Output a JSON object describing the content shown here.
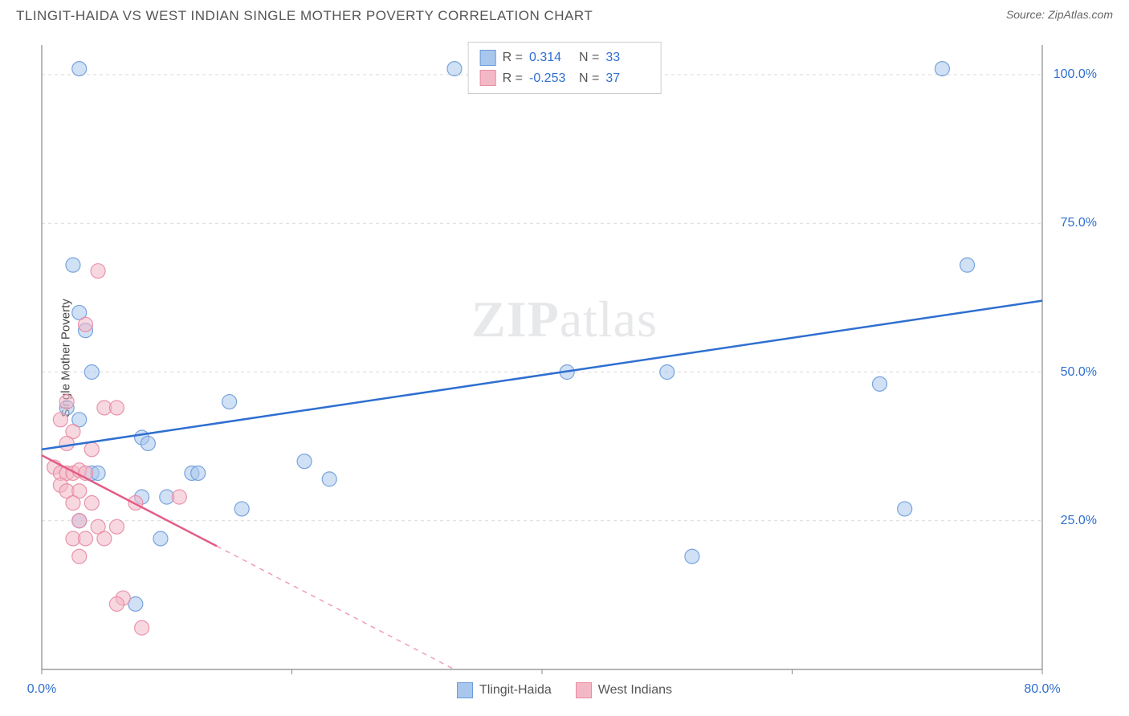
{
  "title": "TLINGIT-HAIDA VS WEST INDIAN SINGLE MOTHER POVERTY CORRELATION CHART",
  "source_label": "Source: ZipAtlas.com",
  "y_axis_label": "Single Mother Poverty",
  "watermark": "ZIPatlas",
  "chart": {
    "type": "scatter-with-trend",
    "xlim": [
      0,
      80
    ],
    "ylim": [
      0,
      105
    ],
    "x_ticks": [
      0,
      20,
      40,
      60,
      80
    ],
    "x_tick_labels": [
      "0.0%",
      "",
      "",
      "",
      "80.0%"
    ],
    "y_ticks": [
      25,
      50,
      75,
      100
    ],
    "y_tick_labels": [
      "25.0%",
      "50.0%",
      "75.0%",
      "100.0%"
    ],
    "grid_color": "#d8d8d8",
    "axis_color": "#888888",
    "background_color": "#ffffff",
    "marker_radius": 9,
    "marker_opacity": 0.55,
    "series": [
      {
        "name": "Tlingit-Haida",
        "fill": "#a9c6ec",
        "stroke": "#6b9bd8",
        "trend_color": "#2f6fd0",
        "trend_width": 2.5,
        "trend": {
          "x1": 0,
          "y1": 37,
          "x2": 80,
          "y2": 62
        },
        "trend_dash_after_x": null,
        "points": [
          [
            3,
            101
          ],
          [
            33,
            101
          ],
          [
            72,
            101
          ],
          [
            2.5,
            68
          ],
          [
            74,
            68
          ],
          [
            3,
            60
          ],
          [
            3.5,
            57
          ],
          [
            4,
            50
          ],
          [
            42,
            50
          ],
          [
            50,
            50
          ],
          [
            67,
            48
          ],
          [
            2,
            44
          ],
          [
            15,
            45
          ],
          [
            3,
            42
          ],
          [
            8,
            39
          ],
          [
            8.5,
            38
          ],
          [
            21,
            35
          ],
          [
            12,
            33
          ],
          [
            12.5,
            33
          ],
          [
            4,
            33
          ],
          [
            4.5,
            33
          ],
          [
            23,
            32
          ],
          [
            8,
            29
          ],
          [
            10,
            29
          ],
          [
            16,
            27
          ],
          [
            69,
            27
          ],
          [
            3,
            25
          ],
          [
            9.5,
            22
          ],
          [
            52,
            19
          ],
          [
            7.5,
            11
          ]
        ]
      },
      {
        "name": "West Indians",
        "fill": "#f3b8c6",
        "stroke": "#e88aa3",
        "trend_color": "#e35d85",
        "trend_width": 2.5,
        "trend": {
          "x1": 0,
          "y1": 36,
          "x2": 33,
          "y2": 0
        },
        "trend_dash_after_x": 14,
        "points": [
          [
            4.5,
            67
          ],
          [
            3.5,
            58
          ],
          [
            2,
            45
          ],
          [
            5,
            44
          ],
          [
            6,
            44
          ],
          [
            1.5,
            42
          ],
          [
            2.5,
            40
          ],
          [
            2,
            38
          ],
          [
            4,
            37
          ],
          [
            1,
            34
          ],
          [
            1.5,
            33
          ],
          [
            2,
            33
          ],
          [
            2.5,
            33
          ],
          [
            3,
            33.5
          ],
          [
            3.5,
            33
          ],
          [
            1.5,
            31
          ],
          [
            2,
            30
          ],
          [
            3,
            30
          ],
          [
            2.5,
            28
          ],
          [
            4,
            28
          ],
          [
            7.5,
            28
          ],
          [
            11,
            29
          ],
          [
            3,
            25
          ],
          [
            4.5,
            24
          ],
          [
            6,
            24
          ],
          [
            2.5,
            22
          ],
          [
            3.5,
            22
          ],
          [
            5,
            22
          ],
          [
            3,
            19
          ],
          [
            6.5,
            12
          ],
          [
            6,
            11
          ],
          [
            8,
            7
          ]
        ]
      }
    ]
  },
  "legend_top": {
    "rows": [
      {
        "swatch_fill": "#a9c6ec",
        "swatch_stroke": "#6b9bd8",
        "r_label": "R =",
        "r_value": "0.314",
        "n_label": "N =",
        "n_value": "33"
      },
      {
        "swatch_fill": "#f3b8c6",
        "swatch_stroke": "#e88aa3",
        "r_label": "R =",
        "r_value": "-0.253",
        "n_label": "N =",
        "n_value": "37"
      }
    ]
  },
  "legend_bottom": {
    "items": [
      {
        "swatch_fill": "#a9c6ec",
        "swatch_stroke": "#6b9bd8",
        "label": "Tlingit-Haida"
      },
      {
        "swatch_fill": "#f3b8c6",
        "swatch_stroke": "#e88aa3",
        "label": "West Indians"
      }
    ]
  }
}
